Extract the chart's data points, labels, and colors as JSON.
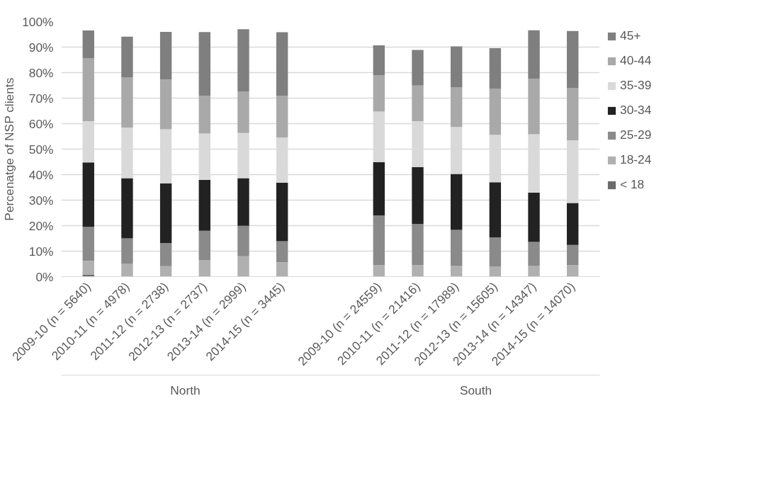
{
  "chart_data": {
    "type": "bar",
    "stacked": true,
    "ylabel": "Percenatge of NSP clients",
    "categories": [
      "2009-10 (n = 5640)",
      "2010-11 (n = 4978)",
      "2011-12 (n = 2738)",
      "2012-13 (n = 2737)",
      "2013-14 (n = 2999)",
      "2014-15 (n = 3445)",
      "2009-10 (n = 24559)",
      "2010-11 (n = 21416)",
      "2011-12 (n = 17989)",
      "2012-13 (n = 15605)",
      "2013-14 (n = 14347)",
      "2014-15 (n = 14070)"
    ],
    "series": [
      {
        "name": "< 18",
        "color": "#6b6b6b",
        "values": [
          0.8,
          0.3,
          null,
          null,
          null,
          null,
          null,
          null,
          0.3,
          null,
          null,
          null
        ]
      },
      {
        "name": "18-24",
        "color": "#b0b0b0",
        "values": [
          5.4,
          4.7,
          4.1,
          6.5,
          8.0,
          5.6,
          4.5,
          4.5,
          3.9,
          3.9,
          4.2,
          4.5
        ]
      },
      {
        "name": "25-29",
        "color": "#8a8a8a",
        "values": [
          13.3,
          10.0,
          9.1,
          11.5,
          11.9,
          8.3,
          19.5,
          16.1,
          14.1,
          11.5,
          9.4,
          7.9
        ]
      },
      {
        "name": "30-34",
        "color": "#222222",
        "values": [
          25.3,
          23.6,
          23.4,
          19.9,
          18.7,
          22.9,
          20.9,
          22.4,
          22.0,
          21.6,
          19.3,
          16.5
        ]
      },
      {
        "name": "35-39",
        "color": "#d9d9d9",
        "values": [
          16.2,
          19.9,
          21.2,
          18.2,
          17.7,
          17.8,
          19.8,
          18.0,
          18.4,
          18.6,
          22.9,
          24.6
        ]
      },
      {
        "name": "40-44",
        "color": "#a9a9a9",
        "values": [
          24.7,
          19.7,
          19.5,
          14.9,
          16.2,
          16.2,
          14.3,
          13.9,
          15.5,
          18.0,
          21.8,
          20.4
        ]
      },
      {
        "name": "45+",
        "color": "#7f7f7f",
        "values": [
          10.8,
          15.9,
          18.7,
          24.9,
          24.5,
          25.0,
          11.7,
          14.0,
          16.1,
          16.0,
          19.0,
          22.4
        ]
      }
    ],
    "ylim": [
      0,
      100
    ],
    "yticks": [
      {
        "value": 0,
        "label": "0%"
      },
      {
        "value": 10,
        "label": "10%"
      },
      {
        "value": 20,
        "label": "20%"
      },
      {
        "value": 30,
        "label": "30%"
      },
      {
        "value": 40,
        "label": "40%"
      },
      {
        "value": 50,
        "label": "50%"
      },
      {
        "value": 60,
        "label": "60%"
      },
      {
        "value": 70,
        "label": "70%"
      },
      {
        "value": 80,
        "label": "80%"
      },
      {
        "value": 90,
        "label": "90%"
      },
      {
        "value": 100,
        "label": "100%"
      }
    ],
    "grid": "y",
    "legend": "right",
    "annotations": [
      "North",
      "South"
    ]
  }
}
